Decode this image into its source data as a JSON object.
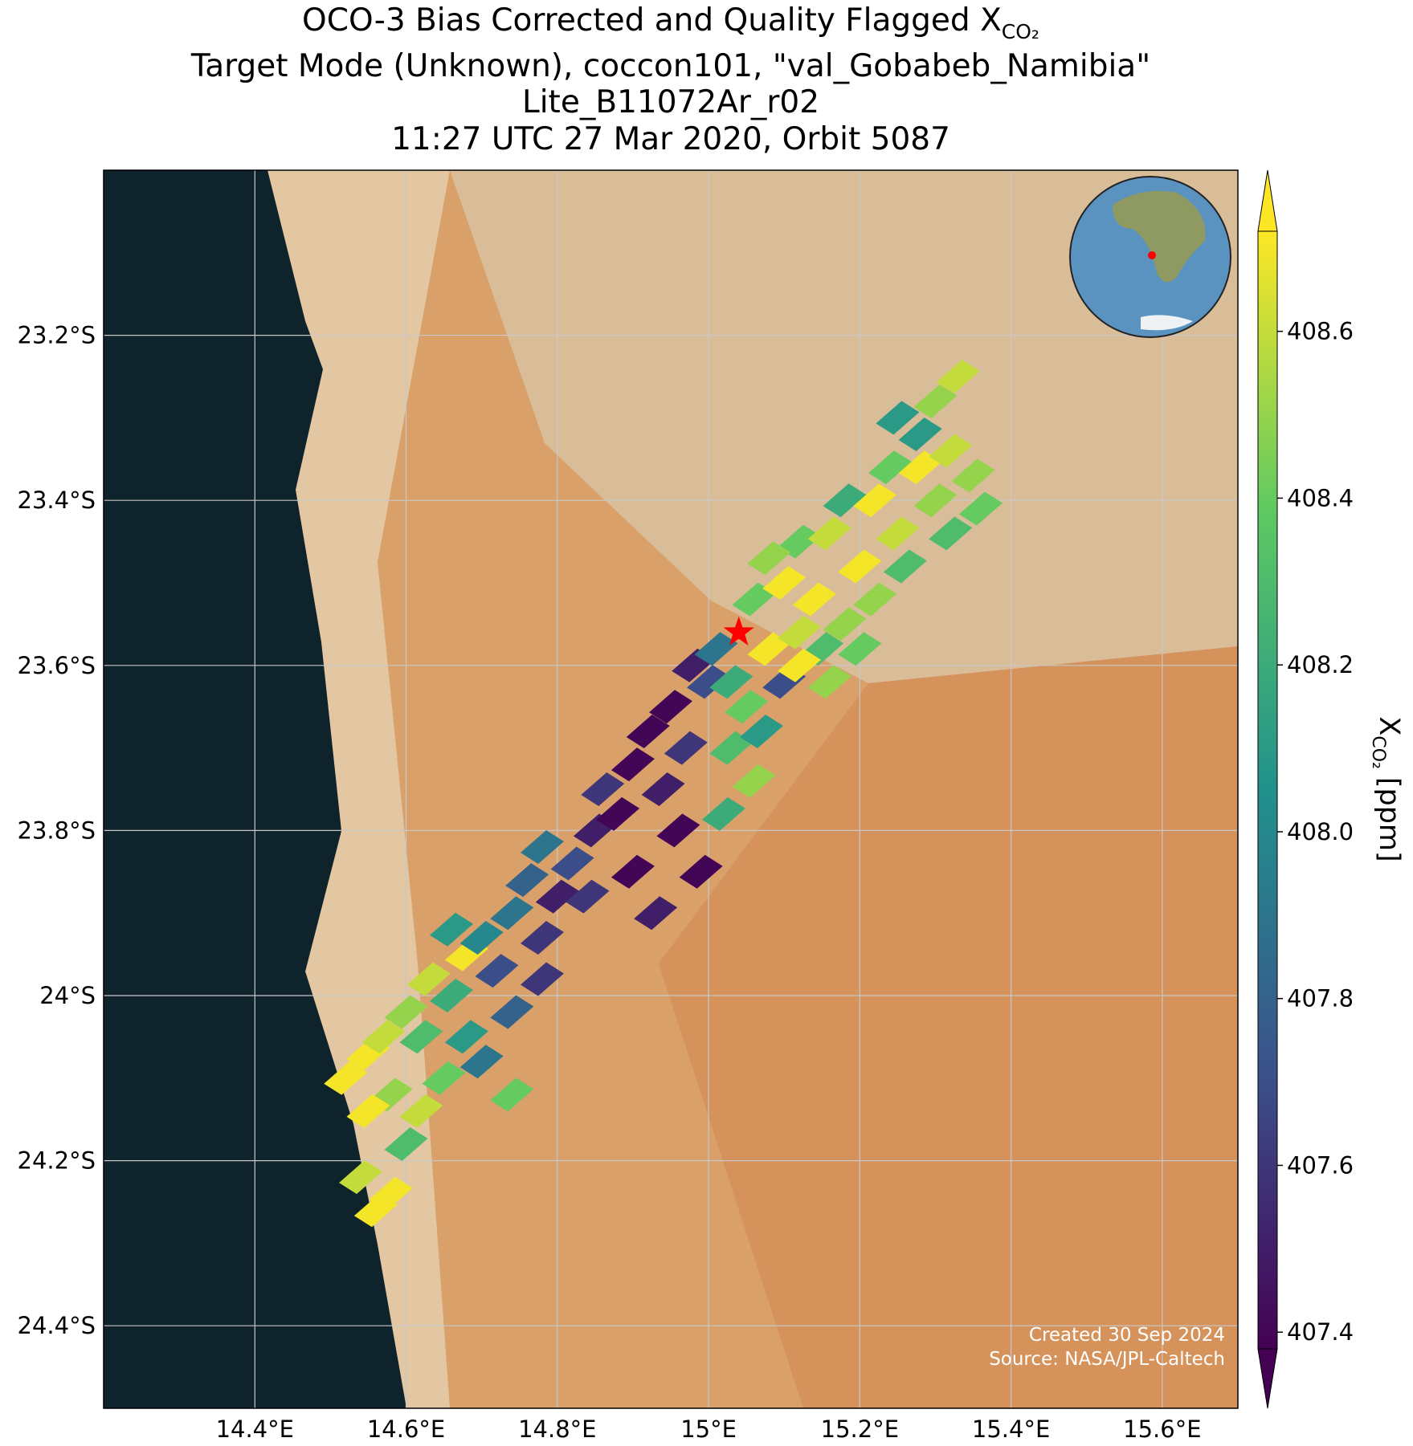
{
  "chart_data": {
    "type": "scatter",
    "title": [
      "OCO-3 Bias Corrected and Quality Flagged X",
      "Target Mode (Unknown), coccon101, \"val_Gobabeb_Namibia\"",
      "Lite_B11072Ar_r02",
      "11:27 UTC 27 Mar 2020, Orbit 5087"
    ],
    "title_subscript": "CO₂",
    "colorbar_label": "X",
    "colorbar_label_subscript": "CO₂",
    "colorbar_label_unit": "[ppm]",
    "colormap": "viridis",
    "footer": [
      "Created 30 Sep 2024",
      "Source: NASA/JPL-Caltech"
    ],
    "xlim": [
      14.2,
      15.7
    ],
    "ylim": [
      -24.5,
      -23.0
    ],
    "xticks": [
      {
        "value": 14.4,
        "label": "14.4°E"
      },
      {
        "value": 14.6,
        "label": "14.6°E"
      },
      {
        "value": 14.8,
        "label": "14.8°E"
      },
      {
        "value": 15.0,
        "label": "15°E"
      },
      {
        "value": 15.2,
        "label": "15.2°E"
      },
      {
        "value": 15.4,
        "label": "15.4°E"
      },
      {
        "value": 15.6,
        "label": "15.6°E"
      }
    ],
    "yticks": [
      {
        "value": -23.2,
        "label": "23.2°S"
      },
      {
        "value": -23.4,
        "label": "23.4°S"
      },
      {
        "value": -23.6,
        "label": "23.6°S"
      },
      {
        "value": -23.8,
        "label": "23.8°S"
      },
      {
        "value": -24.0,
        "label": "24°S"
      },
      {
        "value": -24.2,
        "label": "24.2°S"
      },
      {
        "value": -24.4,
        "label": "24.4°S"
      }
    ],
    "grid": true,
    "clim": [
      407.38,
      408.72
    ],
    "cticks": [
      407.4,
      407.6,
      407.8,
      {
        "value": 408.0,
        "label": "408.0"
      },
      408.2,
      408.4,
      408.6
    ],
    "site": {
      "lon": 15.04,
      "lat": -23.56,
      "color": "#ff0000"
    },
    "x": [
      14.52,
      14.55,
      14.57,
      14.6,
      14.62,
      14.58,
      14.55,
      14.63,
      14.66,
      14.68,
      14.65,
      14.62,
      14.6,
      14.7,
      14.58,
      14.56,
      14.54,
      14.74,
      14.68,
      14.7,
      14.72,
      14.66,
      14.74,
      14.78,
      14.8,
      14.76,
      14.82,
      14.78,
      14.85,
      14.88,
      14.84,
      14.9,
      14.86,
      14.9,
      14.92,
      14.95,
      14.94,
      14.97,
      14.96,
      15.0,
      14.98,
      15.01,
      14.99,
      14.93,
      14.78,
      14.74,
      15.03,
      15.05,
      15.03,
      15.07,
      15.1,
      15.06,
      15.02,
      15.08,
      15.12,
      15.06,
      15.1,
      15.14,
      15.15,
      15.18,
      15.12,
      15.16,
      15.2,
      15.22,
      15.18,
      15.22,
      15.25,
      15.26,
      15.24,
      15.28,
      15.3,
      15.32,
      15.28,
      15.32,
      15.35,
      15.36,
      15.3,
      15.33,
      15.25,
      15.08,
      15.12,
      15.16,
      15.2
    ],
    "y": [
      -24.1,
      -24.07,
      -24.05,
      -24.02,
      -24.05,
      -24.12,
      -24.14,
      -23.98,
      -24.0,
      -24.05,
      -24.1,
      -24.14,
      -24.18,
      -24.08,
      -24.24,
      -24.26,
      -24.22,
      -24.12,
      -23.95,
      -23.93,
      -23.97,
      -23.92,
      -23.9,
      -23.93,
      -23.88,
      -23.86,
      -23.84,
      -23.82,
      -23.8,
      -23.78,
      -23.88,
      -23.85,
      -23.75,
      -23.72,
      -23.68,
      -23.65,
      -23.75,
      -23.7,
      -23.8,
      -23.62,
      -23.6,
      -23.58,
      -23.85,
      -23.9,
      -23.98,
      -24.02,
      -23.62,
      -23.65,
      -23.7,
      -23.68,
      -23.62,
      -23.74,
      -23.78,
      -23.58,
      -23.56,
      -23.52,
      -23.5,
      -23.52,
      -23.58,
      -23.55,
      -23.45,
      -23.44,
      -23.48,
      -23.52,
      -23.4,
      -23.4,
      -23.44,
      -23.48,
      -23.36,
      -23.36,
      -23.4,
      -23.44,
      -23.32,
      -23.34,
      -23.37,
      -23.41,
      -23.28,
      -23.25,
      -23.3,
      -23.47,
      -23.6,
      -23.62,
      -23.58
    ],
    "values": [
      408.7,
      408.7,
      408.6,
      408.5,
      408.3,
      408.5,
      408.7,
      408.6,
      408.2,
      408.1,
      408.4,
      408.6,
      408.3,
      407.9,
      408.7,
      408.7,
      408.6,
      408.4,
      408.7,
      408.0,
      407.7,
      408.1,
      407.9,
      407.6,
      407.5,
      407.8,
      407.7,
      407.9,
      407.5,
      407.4,
      407.6,
      407.4,
      407.6,
      407.4,
      407.4,
      407.4,
      407.5,
      407.6,
      407.4,
      407.7,
      407.5,
      407.9,
      407.4,
      407.5,
      407.6,
      407.8,
      408.2,
      408.4,
      408.3,
      408.1,
      407.7,
      408.5,
      408.2,
      408.7,
      408.6,
      408.4,
      408.7,
      408.7,
      408.3,
      408.5,
      408.4,
      408.6,
      408.7,
      408.5,
      408.2,
      408.7,
      408.6,
      408.3,
      408.4,
      408.7,
      408.5,
      408.3,
      408.1,
      408.6,
      408.5,
      408.4,
      408.5,
      408.6,
      408.1,
      408.5,
      408.7,
      408.5,
      408.4
    ]
  }
}
